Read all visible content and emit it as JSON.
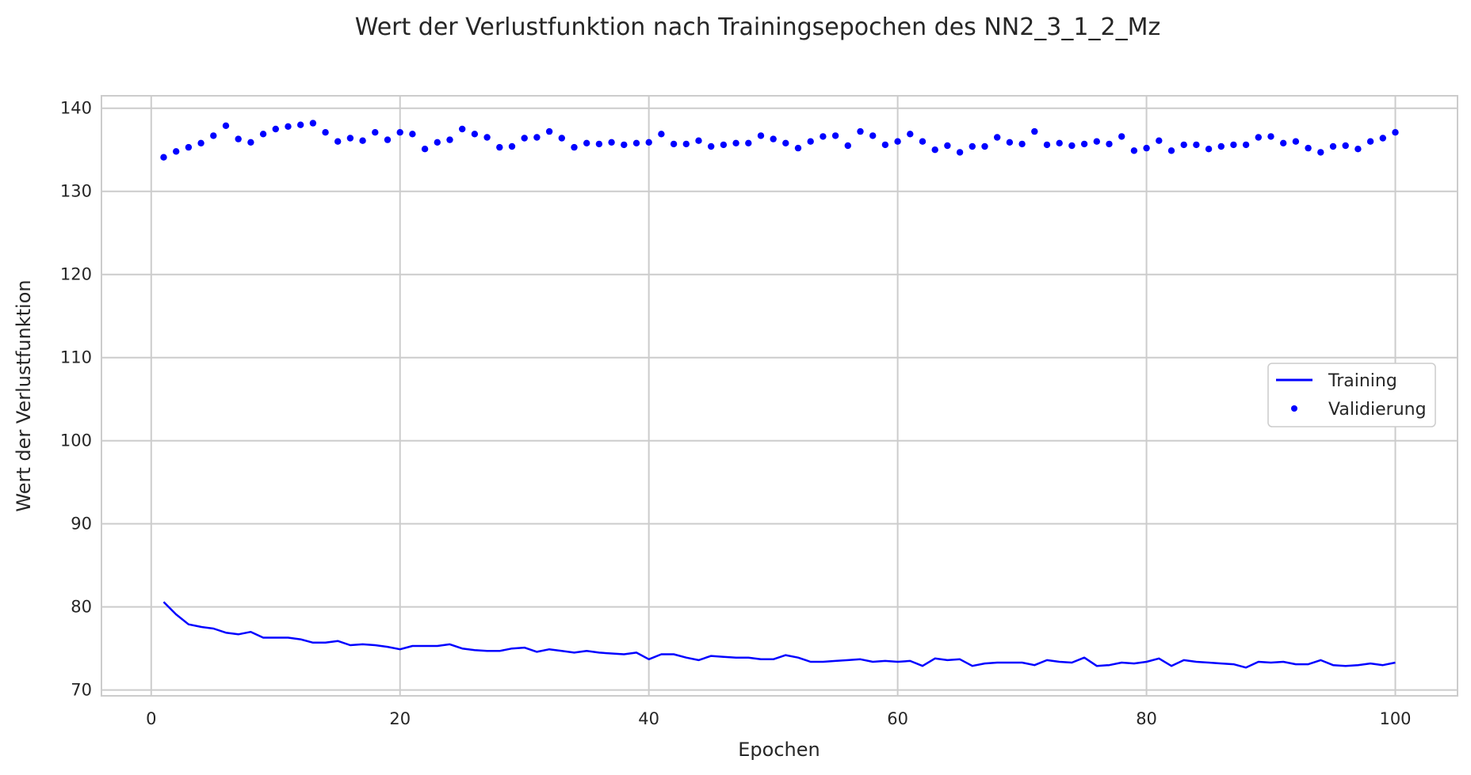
{
  "chart_data": {
    "type": "line",
    "title": "Wert der Verlustfunktion nach Trainingsepochen des NN2_3_1_2_Mz",
    "xlabel": "Epochen",
    "ylabel": "Wert der Verlustfunktion",
    "xlim": [
      -4,
      105
    ],
    "ylim": [
      69.3,
      141.5
    ],
    "xticks": [
      0,
      20,
      40,
      60,
      80,
      100
    ],
    "yticks": [
      70,
      80,
      90,
      100,
      110,
      120,
      130,
      140
    ],
    "grid": true,
    "legend_position": "center-right",
    "x": [
      1,
      2,
      3,
      4,
      5,
      6,
      7,
      8,
      9,
      10,
      11,
      12,
      13,
      14,
      15,
      16,
      17,
      18,
      19,
      20,
      21,
      22,
      23,
      24,
      25,
      26,
      27,
      28,
      29,
      30,
      31,
      32,
      33,
      34,
      35,
      36,
      37,
      38,
      39,
      40,
      41,
      42,
      43,
      44,
      45,
      46,
      47,
      48,
      49,
      50,
      51,
      52,
      53,
      54,
      55,
      56,
      57,
      58,
      59,
      60,
      61,
      62,
      63,
      64,
      65,
      66,
      67,
      68,
      69,
      70,
      71,
      72,
      73,
      74,
      75,
      76,
      77,
      78,
      79,
      80,
      81,
      82,
      83,
      84,
      85,
      86,
      87,
      88,
      89,
      90,
      91,
      92,
      93,
      94,
      95,
      96,
      97,
      98,
      99,
      100
    ],
    "series": [
      {
        "name": "Training",
        "style": "line",
        "color": "#0000ff",
        "values": [
          80.6,
          79.1,
          77.9,
          77.6,
          77.4,
          76.9,
          76.7,
          77.0,
          76.3,
          76.3,
          76.3,
          76.1,
          75.7,
          75.7,
          75.9,
          75.4,
          75.5,
          75.4,
          75.2,
          74.9,
          75.3,
          75.3,
          75.3,
          75.5,
          75.0,
          74.8,
          74.7,
          74.7,
          75.0,
          75.1,
          74.6,
          74.9,
          74.7,
          74.5,
          74.7,
          74.5,
          74.4,
          74.3,
          74.5,
          73.7,
          74.3,
          74.3,
          73.9,
          73.6,
          74.1,
          74.0,
          73.9,
          73.9,
          73.7,
          73.7,
          74.2,
          73.9,
          73.4,
          73.4,
          73.5,
          73.6,
          73.7,
          73.4,
          73.5,
          73.4,
          73.5,
          72.9,
          73.8,
          73.6,
          73.7,
          72.9,
          73.2,
          73.3,
          73.3,
          73.3,
          73.0,
          73.6,
          73.4,
          73.3,
          73.9,
          72.9,
          73.0,
          73.3,
          73.2,
          73.4,
          73.8,
          72.9,
          73.6,
          73.4,
          73.3,
          73.2,
          73.1,
          72.7,
          73.4,
          73.3,
          73.4,
          73.1,
          73.1,
          73.6,
          73.0,
          72.9,
          73.0,
          73.2,
          73.0,
          73.3
        ]
      },
      {
        "name": "Validierung",
        "style": "points",
        "color": "#0000ff",
        "values": [
          134.1,
          134.8,
          135.3,
          135.8,
          136.7,
          137.9,
          136.3,
          135.9,
          136.9,
          137.5,
          137.8,
          138.0,
          138.2,
          137.1,
          136.0,
          136.4,
          136.1,
          137.1,
          136.2,
          137.1,
          136.9,
          135.1,
          135.9,
          136.2,
          137.5,
          136.9,
          136.5,
          135.3,
          135.4,
          136.4,
          136.5,
          137.2,
          136.4,
          135.3,
          135.8,
          135.7,
          135.9,
          135.6,
          135.8,
          135.9,
          136.9,
          135.7,
          135.7,
          136.1,
          135.4,
          135.6,
          135.8,
          135.8,
          136.7,
          136.3,
          135.8,
          135.2,
          136.0,
          136.6,
          136.7,
          135.5,
          137.2,
          136.7,
          135.6,
          136.0,
          136.9,
          136.0,
          135.0,
          135.5,
          134.7,
          135.4,
          135.4,
          136.5,
          135.9,
          135.7,
          137.2,
          135.6,
          135.8,
          135.5,
          135.7,
          136.0,
          135.7,
          136.6,
          134.9,
          135.2,
          136.1,
          134.9,
          135.6,
          135.6,
          135.1,
          135.4,
          135.6,
          135.6,
          136.5,
          136.6,
          135.8,
          136.0,
          135.2,
          134.7,
          135.4,
          135.5,
          135.1,
          136.0,
          136.4,
          137.1
        ]
      }
    ]
  }
}
